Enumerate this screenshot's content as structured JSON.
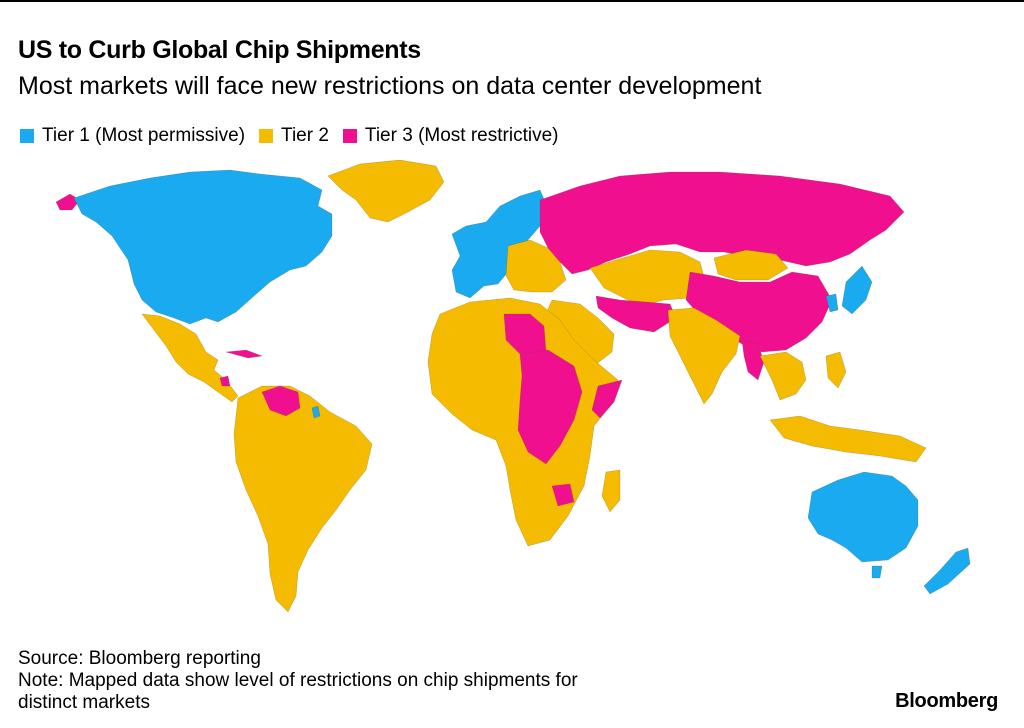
{
  "title": "US to Curb Global Chip Shipments",
  "subtitle": "Most markets will face new restrictions on data center development",
  "legend": [
    {
      "label": "Tier 1 (Most permissive)",
      "color": "#19aaf0"
    },
    {
      "label": "Tier 2",
      "color": "#f5bb00"
    },
    {
      "label": "Tier 3 (Most restrictive)",
      "color": "#f0108f"
    }
  ],
  "source": "Source: Bloomberg reporting",
  "note_line1": "Note: Mapped data show level of restrictions on chip shipments for",
  "note_line2": "distinct markets",
  "brand": "Bloomberg"
}
